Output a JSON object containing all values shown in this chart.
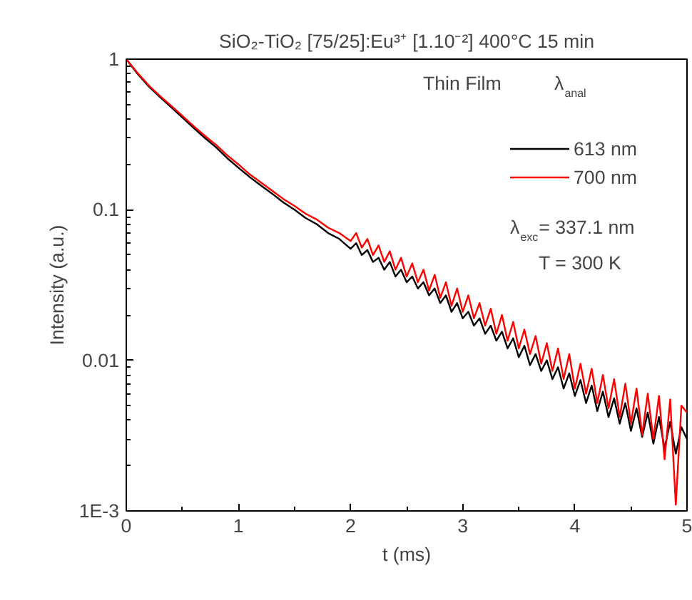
{
  "chart_data": {
    "type": "line",
    "title": "SiO₂-TiO₂ [75/25]:Eu³⁺ [1.10⁻²] 400°C 15 min",
    "xlabel": "t (ms)",
    "ylabel": "Intensity (a.u.)",
    "legend_title": "λ$_{anal}$",
    "annotations": [
      "Thin Film",
      "λ$_{exc}$= 337.1 nm",
      "T = 300 K"
    ],
    "log": "y",
    "xlim": [
      0,
      5
    ],
    "ylim": [
      0.001,
      1
    ],
    "xticks": [
      0,
      1,
      2,
      3,
      4,
      5
    ],
    "yticks": [
      {
        "value": 0.001,
        "label": "1E-3"
      },
      0.01,
      0.1,
      1
    ],
    "grid": false,
    "legend": "top right",
    "line_style": "solid",
    "marker": "none",
    "x": [
      0,
      0.1,
      0.2,
      0.3,
      0.4,
      0.5,
      0.6,
      0.7,
      0.8,
      0.9,
      1.0,
      1.1,
      1.2,
      1.3,
      1.4,
      1.5,
      1.6,
      1.7,
      1.8,
      1.9,
      2.0,
      2.05,
      2.1,
      2.15,
      2.2,
      2.25,
      2.3,
      2.35,
      2.4,
      2.45,
      2.5,
      2.55,
      2.6,
      2.65,
      2.7,
      2.75,
      2.8,
      2.85,
      2.9,
      2.95,
      3.0,
      3.05,
      3.1,
      3.15,
      3.2,
      3.25,
      3.3,
      3.35,
      3.4,
      3.45,
      3.5,
      3.55,
      3.6,
      3.65,
      3.7,
      3.75,
      3.8,
      3.85,
      3.9,
      3.95,
      4.0,
      4.05,
      4.1,
      4.15,
      4.2,
      4.25,
      4.3,
      4.35,
      4.4,
      4.45,
      4.5,
      4.55,
      4.6,
      4.65,
      4.7,
      4.75,
      4.8,
      4.85,
      4.9,
      4.95,
      5.0
    ],
    "series": [
      {
        "name": "613 nm",
        "color": "#000000",
        "values": [
          1,
          0.8,
          0.66,
          0.56,
          0.48,
          0.41,
          0.35,
          0.3,
          0.26,
          0.22,
          0.19,
          0.165,
          0.145,
          0.128,
          0.112,
          0.1,
          0.088,
          0.08,
          0.07,
          0.064,
          0.055,
          0.06,
          0.05,
          0.054,
          0.045,
          0.048,
          0.04,
          0.045,
          0.036,
          0.04,
          0.033,
          0.036,
          0.03,
          0.033,
          0.027,
          0.03,
          0.024,
          0.027,
          0.021,
          0.024,
          0.019,
          0.021,
          0.017,
          0.019,
          0.015,
          0.017,
          0.0135,
          0.0155,
          0.012,
          0.014,
          0.0105,
          0.0125,
          0.0093,
          0.011,
          0.0085,
          0.01,
          0.0075,
          0.009,
          0.0065,
          0.0082,
          0.0058,
          0.0074,
          0.0052,
          0.0068,
          0.0046,
          0.0062,
          0.0042,
          0.0056,
          0.0038,
          0.0052,
          0.0034,
          0.0048,
          0.0031,
          0.0045,
          0.0028,
          0.0042,
          0.0026,
          0.0039,
          0.0024,
          0.0036,
          0.003
        ]
      },
      {
        "name": "700 nm",
        "color": "#ff0000",
        "values": [
          1,
          0.81,
          0.67,
          0.57,
          0.49,
          0.42,
          0.36,
          0.31,
          0.27,
          0.23,
          0.2,
          0.172,
          0.152,
          0.134,
          0.118,
          0.106,
          0.094,
          0.086,
          0.076,
          0.07,
          0.062,
          0.07,
          0.056,
          0.064,
          0.05,
          0.058,
          0.045,
          0.053,
          0.04,
          0.048,
          0.036,
          0.044,
          0.033,
          0.04,
          0.029,
          0.037,
          0.026,
          0.033,
          0.023,
          0.03,
          0.021,
          0.027,
          0.019,
          0.024,
          0.017,
          0.022,
          0.015,
          0.02,
          0.0135,
          0.018,
          0.012,
          0.016,
          0.011,
          0.0145,
          0.0095,
          0.013,
          0.0085,
          0.012,
          0.0075,
          0.011,
          0.0065,
          0.0095,
          0.006,
          0.0088,
          0.0052,
          0.008,
          0.0048,
          0.0075,
          0.0042,
          0.007,
          0.0038,
          0.0065,
          0.0032,
          0.006,
          0.003,
          0.0058,
          0.0022,
          0.0055,
          0.0011,
          0.005,
          0.0045
        ]
      }
    ]
  }
}
